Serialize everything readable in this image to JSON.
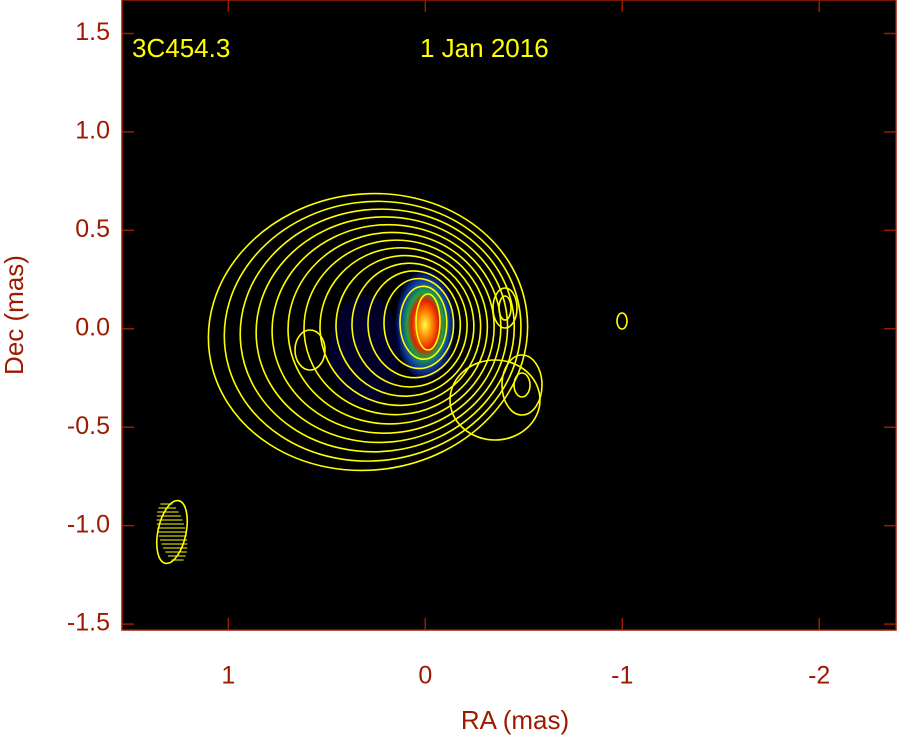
{
  "chart_data": {
    "type": "image",
    "source": "3C454.3",
    "date": "1 Jan 2016",
    "x_label": "RA (mas)",
    "y_label": "Dec (mas)",
    "xlim": [
      1.54,
      -2.39
    ],
    "ylim": [
      -1.53,
      1.67
    ],
    "xticks": [
      1,
      0,
      -1,
      -2
    ],
    "yticks": [
      1.5,
      {
        "value": 1.0,
        "label": "1.0"
      },
      0.5,
      {
        "value": 0.0,
        "label": "0.0"
      },
      -0.5,
      {
        "value": -1.0,
        "label": "-1.0"
      },
      -1.5
    ],
    "axis_color": "#9c1a00",
    "contour_color": "#ffff00"
  }
}
